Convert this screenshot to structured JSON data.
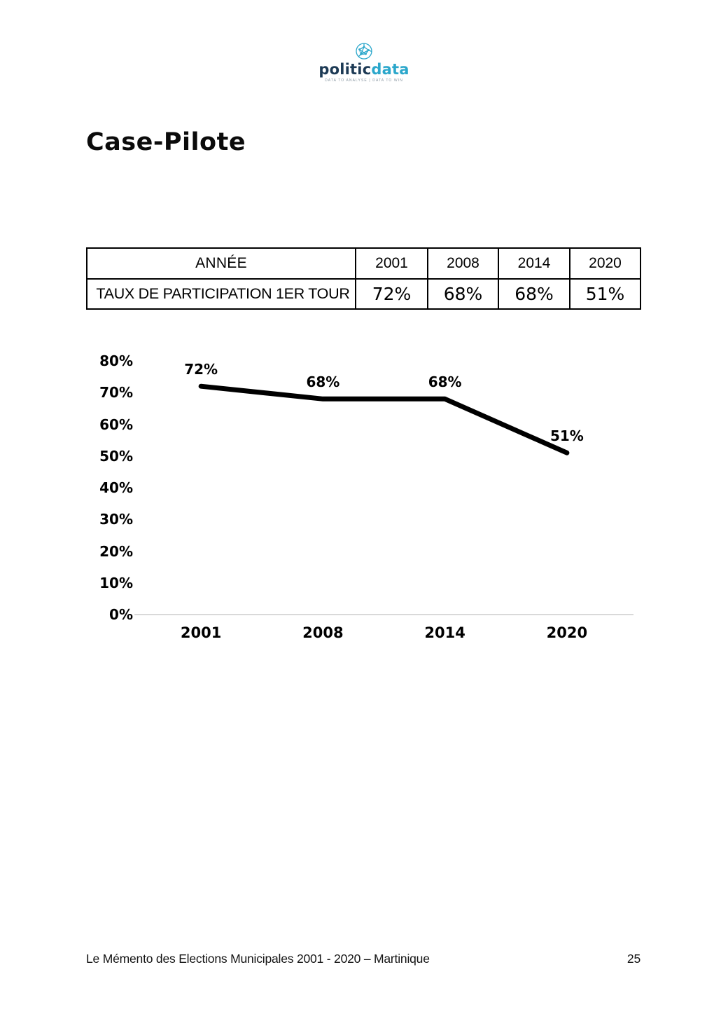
{
  "logo": {
    "brand_prefix": "politic",
    "brand_suffix": "data",
    "tagline": "DATA TO ANALYSE | DATA TO WIN",
    "colors": {
      "navy": "#1d3a55",
      "cyan": "#2ba7cb"
    }
  },
  "page": {
    "title": "Case-Pilote"
  },
  "table": {
    "header_label": "ANNÉE",
    "row_label": "TAUX DE PARTICIPATION 1ER TOUR",
    "years": [
      "2001",
      "2008",
      "2014",
      "2020"
    ],
    "values": [
      "72%",
      "68%",
      "68%",
      "51%"
    ]
  },
  "chart_data": {
    "type": "line",
    "title": "",
    "xlabel": "",
    "ylabel": "",
    "categories": [
      "2001",
      "2008",
      "2014",
      "2020"
    ],
    "values": [
      72,
      68,
      68,
      51
    ],
    "data_labels": [
      "72%",
      "68%",
      "68%",
      "51%"
    ],
    "ylim": [
      0,
      80
    ],
    "ytick_step": 10,
    "grid": false,
    "legend": false,
    "line_color": "#000000",
    "axis_color": "#d9d9d9"
  },
  "footer": {
    "text": "Le Mémento des Elections Municipales 2001 - 2020 – Martinique",
    "page_number": "25"
  }
}
